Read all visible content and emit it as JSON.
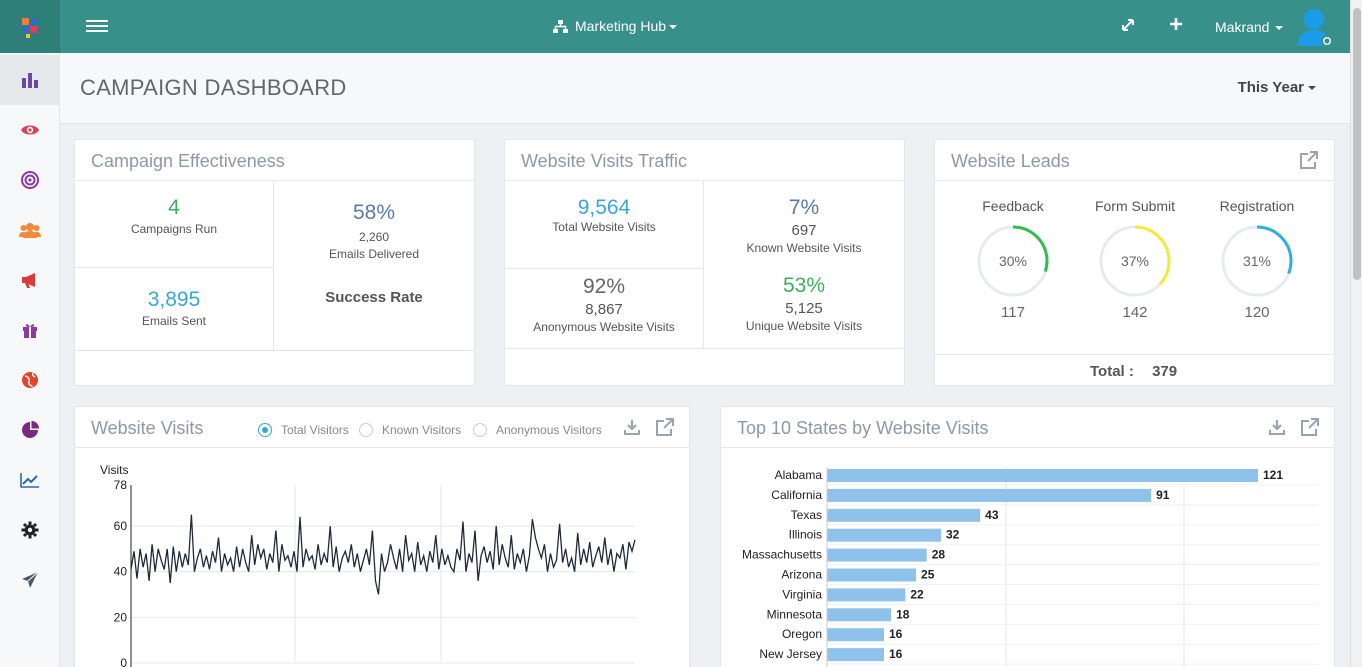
{
  "topbar": {
    "hub_label": "Marketing Hub",
    "user_name": "Makrand"
  },
  "sidebar": {
    "items": [
      {
        "icon": "bar-chart-icon",
        "color": "#6a4aa0"
      },
      {
        "icon": "eye-icon",
        "color": "#d9415a"
      },
      {
        "icon": "target-icon",
        "color": "#8a3a9e"
      },
      {
        "icon": "users-icon",
        "color": "#f08a3a"
      },
      {
        "icon": "megaphone-icon",
        "color": "#d93b3b"
      },
      {
        "icon": "gift-icon",
        "color": "#8a3a9e"
      },
      {
        "icon": "globe-icon",
        "color": "#e0452e"
      },
      {
        "icon": "pie-chart-icon",
        "color": "#7a2a7e"
      },
      {
        "icon": "trend-line-icon",
        "color": "#2a6aa8"
      },
      {
        "icon": "gear-icon",
        "color": "#222222"
      },
      {
        "icon": "paper-plane-icon",
        "color": "#4a5a6a"
      }
    ]
  },
  "page": {
    "title": "CAMPAIGN DASHBOARD",
    "period": "This Year"
  },
  "effectiveness": {
    "title": "Campaign Effectiveness",
    "campaigns_value": "4",
    "campaigns_label": "Campaigns Run",
    "emails_sent_value": "3,895",
    "emails_sent_label": "Emails Sent",
    "rate_pct": "58%",
    "delivered_value": "2,260",
    "delivered_label": "Emails Delivered",
    "success_label": "Success Rate"
  },
  "traffic": {
    "title": "Website Visits Traffic",
    "total_value": "9,564",
    "total_label": "Total Website Visits",
    "known_pct": "7%",
    "known_value": "697",
    "known_label": "Known Website Visits",
    "anon_pct": "92%",
    "anon_value": "8,867",
    "anon_label": "Anonymous Website Visits",
    "unique_pct": "53%",
    "unique_value": "5,125",
    "unique_label": "Unique Website Visits"
  },
  "leads": {
    "title": "Website Leads",
    "items": [
      {
        "label": "Feedback",
        "pct_text": "30%",
        "pct": 0.3,
        "count": "117",
        "color": "#2fbf4f"
      },
      {
        "label": "Form Submit",
        "pct_text": "37%",
        "pct": 0.37,
        "count": "142",
        "color": "#f2ea3a"
      },
      {
        "label": "Registration",
        "pct_text": "31%",
        "pct": 0.31,
        "count": "120",
        "color": "#2fb0d8"
      }
    ],
    "total_label": "Total :",
    "total_value": "379"
  },
  "visits": {
    "title": "Website Visits",
    "radios": [
      "Total Visitors",
      "Known Visitors",
      "Anonymous Visitors"
    ],
    "selected": 0
  },
  "states": {
    "title": "Top 10 States by Website Visits"
  },
  "chart_data": [
    {
      "type": "line",
      "title": "",
      "ylabel": "Visits",
      "xlabel": "",
      "ylim": [
        0,
        78
      ],
      "yticks": [
        "0",
        "20",
        "40",
        "60",
        "78"
      ],
      "series": [
        {
          "values": [
            41,
            49,
            37,
            50,
            42,
            48,
            36,
            52,
            40,
            50,
            45,
            41,
            50,
            35,
            51,
            40,
            49,
            42,
            48,
            43,
            65,
            40,
            46,
            50,
            42,
            47,
            41,
            49,
            44,
            55,
            40,
            48,
            43,
            46,
            40,
            51,
            42,
            50,
            44,
            40,
            56,
            43,
            52,
            46,
            50,
            41,
            48,
            44,
            58,
            40,
            52,
            45,
            47,
            42,
            49,
            40,
            64,
            42,
            50,
            45,
            47,
            41,
            52,
            43,
            48,
            44,
            60,
            42,
            51,
            40,
            46,
            49,
            44,
            52,
            42,
            48,
            40,
            45,
            50,
            43,
            58,
            36,
            30,
            48,
            40,
            44,
            52,
            46,
            41,
            50,
            40,
            56,
            45,
            48,
            40,
            53,
            43,
            47,
            40,
            49,
            44,
            56,
            41,
            50,
            43,
            47,
            42,
            40,
            50,
            45,
            62,
            40,
            48,
            44,
            58,
            36,
            47,
            51,
            44,
            49,
            41,
            60,
            43,
            52,
            46,
            42,
            56,
            41,
            48,
            44,
            50,
            40,
            47,
            63,
            55,
            50,
            46,
            52,
            40,
            48,
            42,
            45,
            61,
            44,
            50,
            42,
            46,
            40,
            57,
            43,
            50,
            44,
            53,
            42,
            47,
            51,
            44,
            55,
            43,
            50,
            40,
            48,
            46,
            52,
            41,
            53,
            49,
            54
          ]
        }
      ]
    },
    {
      "type": "bar",
      "title": "",
      "categories": [
        "Alabama",
        "California",
        "Texas",
        "Illinois",
        "Massachusetts",
        "Arizona",
        "Virginia",
        "Minnesota",
        "Oregon",
        "New Jersey"
      ],
      "values": [
        121,
        91,
        43,
        32,
        28,
        25,
        22,
        18,
        16,
        16
      ],
      "color": "#8ec2ea"
    }
  ]
}
